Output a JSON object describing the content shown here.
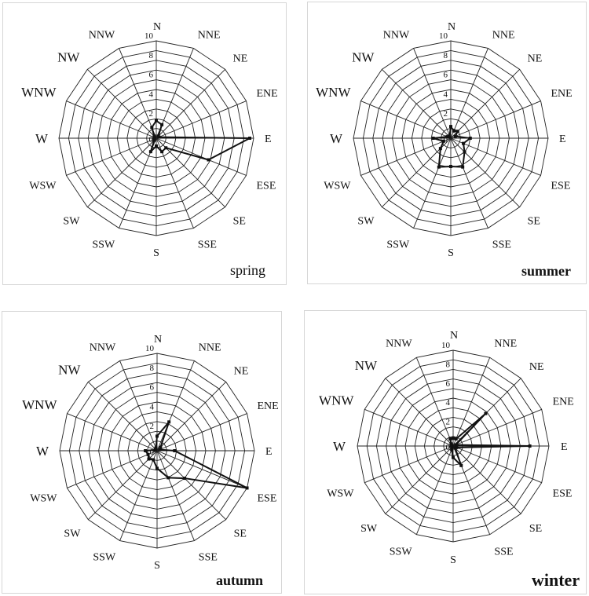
{
  "chart_data": [
    {
      "type": "radar",
      "panel_label": "spring",
      "directions": [
        "N",
        "NNE",
        "NE",
        "ENE",
        "E",
        "ESE",
        "SE",
        "SSE",
        "S",
        "SSW",
        "SW",
        "WSW",
        "W",
        "WNW",
        "NW",
        "NNW"
      ],
      "ticks": [
        "0",
        "2",
        "4",
        "6",
        "8",
        "10"
      ],
      "rlim": [
        0,
        10
      ],
      "values": [
        1.8,
        1.5,
        0.3,
        0.3,
        9.6,
        5.8,
        1.4,
        1.5,
        0.8,
        1.5,
        0.3,
        0.2,
        0.2,
        0.2,
        0.3,
        1.2
      ]
    },
    {
      "type": "radar",
      "panel_label": "summer",
      "directions": [
        "N",
        "NNE",
        "NE",
        "ENE",
        "E",
        "ESE",
        "SE",
        "SSE",
        "S",
        "SSW",
        "SW",
        "WSW",
        "W",
        "WNW",
        "NW",
        "NNW"
      ],
      "ticks": [
        "0",
        "2",
        "4",
        "6",
        "8",
        "10"
      ],
      "rlim": [
        0,
        10
      ],
      "values": [
        1.2,
        0.8,
        1.0,
        0.5,
        2.0,
        1.4,
        2.0,
        3.2,
        2.9,
        3.2,
        1.5,
        0.8,
        1.8,
        0.4,
        0.2,
        0.3
      ]
    },
    {
      "type": "radar",
      "panel_label": "autumn",
      "directions": [
        "N",
        "NNE",
        "NE",
        "ENE",
        "E",
        "ESE",
        "SE",
        "SSE",
        "S",
        "SSW",
        "SW",
        "WSW",
        "W",
        "WNW",
        "NW",
        "NNW"
      ],
      "ticks": [
        "0",
        "2",
        "4",
        "6",
        "8",
        "10"
      ],
      "rlim": [
        0,
        10
      ],
      "values": [
        1.5,
        3.2,
        0.5,
        0.3,
        1.8,
        10.0,
        4.0,
        3.0,
        1.8,
        1.0,
        1.2,
        1.0,
        1.2,
        0.2,
        0.2,
        0.3
      ]
    },
    {
      "type": "radar",
      "panel_label": "winter",
      "directions": [
        "N",
        "NNE",
        "NE",
        "ENE",
        "E",
        "ESE",
        "SE",
        "SSE",
        "S",
        "SSW",
        "SW",
        "WSW",
        "W",
        "WNW",
        "NW",
        "NNW"
      ],
      "ticks": [
        "0",
        "2",
        "4",
        "6",
        "8",
        "10"
      ],
      "rlim": [
        0,
        10
      ],
      "values": [
        0.8,
        0.8,
        4.8,
        0.3,
        8.0,
        0.4,
        0.3,
        2.2,
        1.2,
        0.4,
        0.2,
        0.1,
        0.2,
        0.2,
        0.3,
        0.8
      ]
    }
  ]
}
